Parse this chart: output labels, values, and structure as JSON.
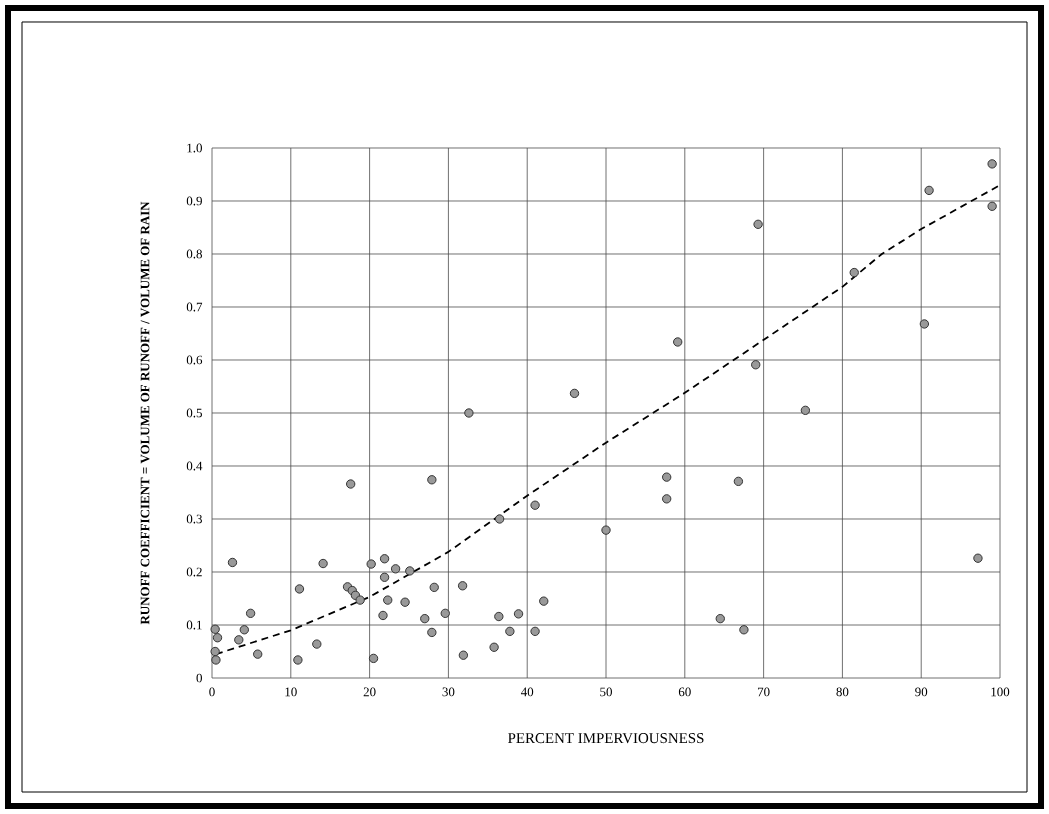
{
  "chart_data": {
    "type": "scatter",
    "xlabel": "PERCENT IMPERVIOUSNESS",
    "ylabel": "RUNOFF COEFFICIENT = VOLUME OF RUNOFF / VOLUME OF RAIN",
    "xlim": [
      0,
      100
    ],
    "ylim": [
      0,
      1
    ],
    "xticks": [
      0,
      10,
      20,
      30,
      40,
      50,
      60,
      70,
      80,
      90,
      100
    ],
    "yticks": [
      0,
      0.1,
      0.2,
      0.3,
      0.4,
      0.5,
      0.6,
      0.7,
      0.8,
      0.9,
      {
        "value": 1,
        "label": "1.0"
      }
    ],
    "grid": true,
    "series": [
      {
        "color": "#999999",
        "marker": "circle",
        "x": [
          2.6,
          14.1,
          17.6,
          27.9,
          32.6,
          46,
          41,
          36.5,
          50,
          20.2,
          21.9,
          23.3,
          25.1,
          21.9,
          11.1,
          17.2,
          17.8,
          18.2,
          18.8,
          22.3,
          24.5,
          28.2,
          31.8,
          42.1,
          4.9,
          21.7,
          27,
          29.6,
          36.4,
          38.9,
          0.4,
          4.1,
          0.7,
          3.4,
          27.9,
          37.8,
          41,
          5.8,
          0.4,
          0.5,
          10.9,
          13.3,
          20.5,
          31.9,
          35.8,
          69.3,
          81.5,
          90.4,
          59.1,
          69,
          75.3,
          57.7,
          57.7,
          66.8,
          97.2,
          64.5,
          67.5,
          91,
          99,
          99
        ],
        "values": [
          0.218,
          0.216,
          0.366,
          0.374,
          0.5,
          0.537,
          0.326,
          0.3,
          0.279,
          0.215,
          0.225,
          0.206,
          0.202,
          0.19,
          0.168,
          0.172,
          0.165,
          0.156,
          0.147,
          0.147,
          0.143,
          0.171,
          0.174,
          0.145,
          0.122,
          0.118,
          0.112,
          0.122,
          0.116,
          0.121,
          0.092,
          0.091,
          0.076,
          0.072,
          0.086,
          0.088,
          0.088,
          0.045,
          0.05,
          0.034,
          0.034,
          0.064,
          0.037,
          0.043,
          0.058,
          0.856,
          0.765,
          0.668,
          0.634,
          0.591,
          0.505,
          0.379,
          0.338,
          0.371,
          0.226,
          0.112,
          0.091,
          0.92,
          0.97,
          0.89
        ]
      },
      {
        "type": "line",
        "color": "#000000",
        "line_style": "dashed",
        "marker": "none",
        "x": [
          0.5,
          10,
          20,
          30,
          40,
          50,
          60,
          70,
          80,
          85,
          90,
          100
        ],
        "values": [
          0.045,
          0.09,
          0.153,
          0.238,
          0.344,
          0.444,
          0.538,
          0.638,
          0.738,
          0.8,
          0.847,
          0.93
        ]
      }
    ]
  }
}
